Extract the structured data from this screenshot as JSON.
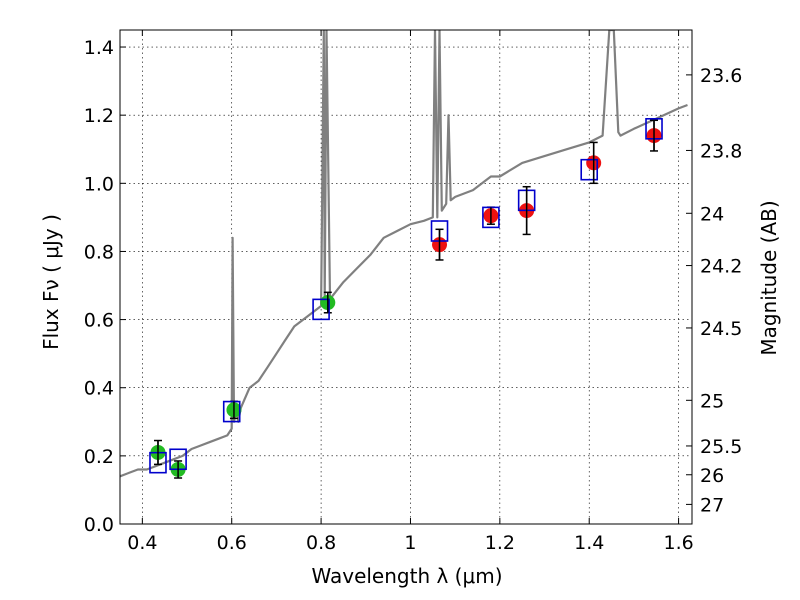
{
  "chart_data": {
    "type": "scatter",
    "xlabel": "Wavelength  λ (μm)",
    "ylabel": "Flux  Fν  ( μJy )",
    "y2label": "Magnitude (AB)",
    "xlim": [
      0.35,
      1.63
    ],
    "ylim": [
      0.0,
      1.45
    ],
    "grid": true,
    "x_ticks": [
      {
        "value": 0.4,
        "label": "0.4"
      },
      {
        "value": 0.6,
        "label": "0.6"
      },
      {
        "value": 0.8,
        "label": "0.8"
      },
      {
        "value": 1.0,
        "label": "1"
      },
      {
        "value": 1.2,
        "label": "1.2"
      },
      {
        "value": 1.4,
        "label": "1.4"
      },
      {
        "value": 1.6,
        "label": "1.6"
      }
    ],
    "y_ticks": [
      {
        "value": 0.0,
        "label": "0.0"
      },
      {
        "value": 0.2,
        "label": "0.2"
      },
      {
        "value": 0.4,
        "label": "0.4"
      },
      {
        "value": 0.6,
        "label": "0.6"
      },
      {
        "value": 0.8,
        "label": "0.8"
      },
      {
        "value": 1.0,
        "label": "1.0"
      },
      {
        "value": 1.2,
        "label": "1.2"
      },
      {
        "value": 1.4,
        "label": "1.4"
      }
    ],
    "y2_ticks": [
      {
        "value": 23.6,
        "label": "23.6"
      },
      {
        "value": 23.8,
        "label": "23.8"
      },
      {
        "value": 24.0,
        "label": "24"
      },
      {
        "value": 24.2,
        "label": "24.2"
      },
      {
        "value": 24.5,
        "label": "24.5"
      },
      {
        "value": 25.0,
        "label": "25"
      },
      {
        "value": 25.5,
        "label": "25.5"
      },
      {
        "value": 26.0,
        "label": "26"
      },
      {
        "value": 27.0,
        "label": "27"
      }
    ],
    "series": [
      {
        "kind": "line",
        "color": "#808080",
        "x": [
          0.35,
          0.37,
          0.39,
          0.41,
          0.43,
          0.45,
          0.47,
          0.49,
          0.51,
          0.53,
          0.55,
          0.57,
          0.59,
          0.6,
          0.602,
          0.605,
          0.61,
          0.615,
          0.62,
          0.64,
          0.66,
          0.68,
          0.7,
          0.72,
          0.74,
          0.76,
          0.78,
          0.8,
          0.806,
          0.808,
          0.812,
          0.82,
          0.85,
          0.88,
          0.91,
          0.94,
          0.97,
          1.0,
          1.03,
          1.05,
          1.055,
          1.06,
          1.065,
          1.07,
          1.08,
          1.085,
          1.09,
          1.1,
          1.12,
          1.14,
          1.16,
          1.18,
          1.2,
          1.25,
          1.3,
          1.35,
          1.4,
          1.43,
          1.445,
          1.455,
          1.465,
          1.47,
          1.5,
          1.55,
          1.6,
          1.62
        ],
        "y": [
          0.14,
          0.15,
          0.16,
          0.16,
          0.17,
          0.18,
          0.19,
          0.2,
          0.22,
          0.23,
          0.24,
          0.25,
          0.26,
          0.28,
          0.84,
          0.3,
          0.34,
          0.3,
          0.34,
          0.4,
          0.42,
          0.46,
          0.5,
          0.54,
          0.58,
          0.6,
          0.62,
          0.64,
          1.45,
          0.66,
          1.45,
          0.66,
          0.71,
          0.75,
          0.79,
          0.84,
          0.86,
          0.88,
          0.89,
          0.9,
          1.45,
          0.9,
          1.45,
          0.92,
          0.94,
          1.2,
          0.95,
          0.96,
          0.97,
          0.98,
          1.0,
          1.02,
          1.02,
          1.06,
          1.08,
          1.1,
          1.12,
          1.14,
          1.45,
          1.45,
          1.15,
          1.14,
          1.16,
          1.19,
          1.22,
          1.23
        ]
      },
      {
        "kind": "points",
        "marker": "circle",
        "color": "#22bb22",
        "x": [
          0.435,
          0.48,
          0.605,
          0.815
        ],
        "y": [
          0.21,
          0.16,
          0.335,
          0.65
        ],
        "yerr": [
          0.035,
          0.025,
          0.025,
          0.03
        ]
      },
      {
        "kind": "points",
        "marker": "circle",
        "color": "#ee1111",
        "x": [
          1.065,
          1.18,
          1.26,
          1.41,
          1.545
        ],
        "y": [
          0.82,
          0.905,
          0.92,
          1.06,
          1.14
        ],
        "yerr": [
          0.045,
          0.025,
          0.07,
          0.06,
          0.045
        ]
      },
      {
        "kind": "points",
        "marker": "square",
        "color": "#0000cc",
        "x": [
          0.435,
          0.48,
          0.6,
          0.8,
          1.065,
          1.18,
          1.26,
          1.4,
          1.545
        ],
        "y": [
          0.18,
          0.19,
          0.33,
          0.63,
          0.86,
          0.9,
          0.95,
          1.04,
          1.16
        ]
      }
    ]
  }
}
